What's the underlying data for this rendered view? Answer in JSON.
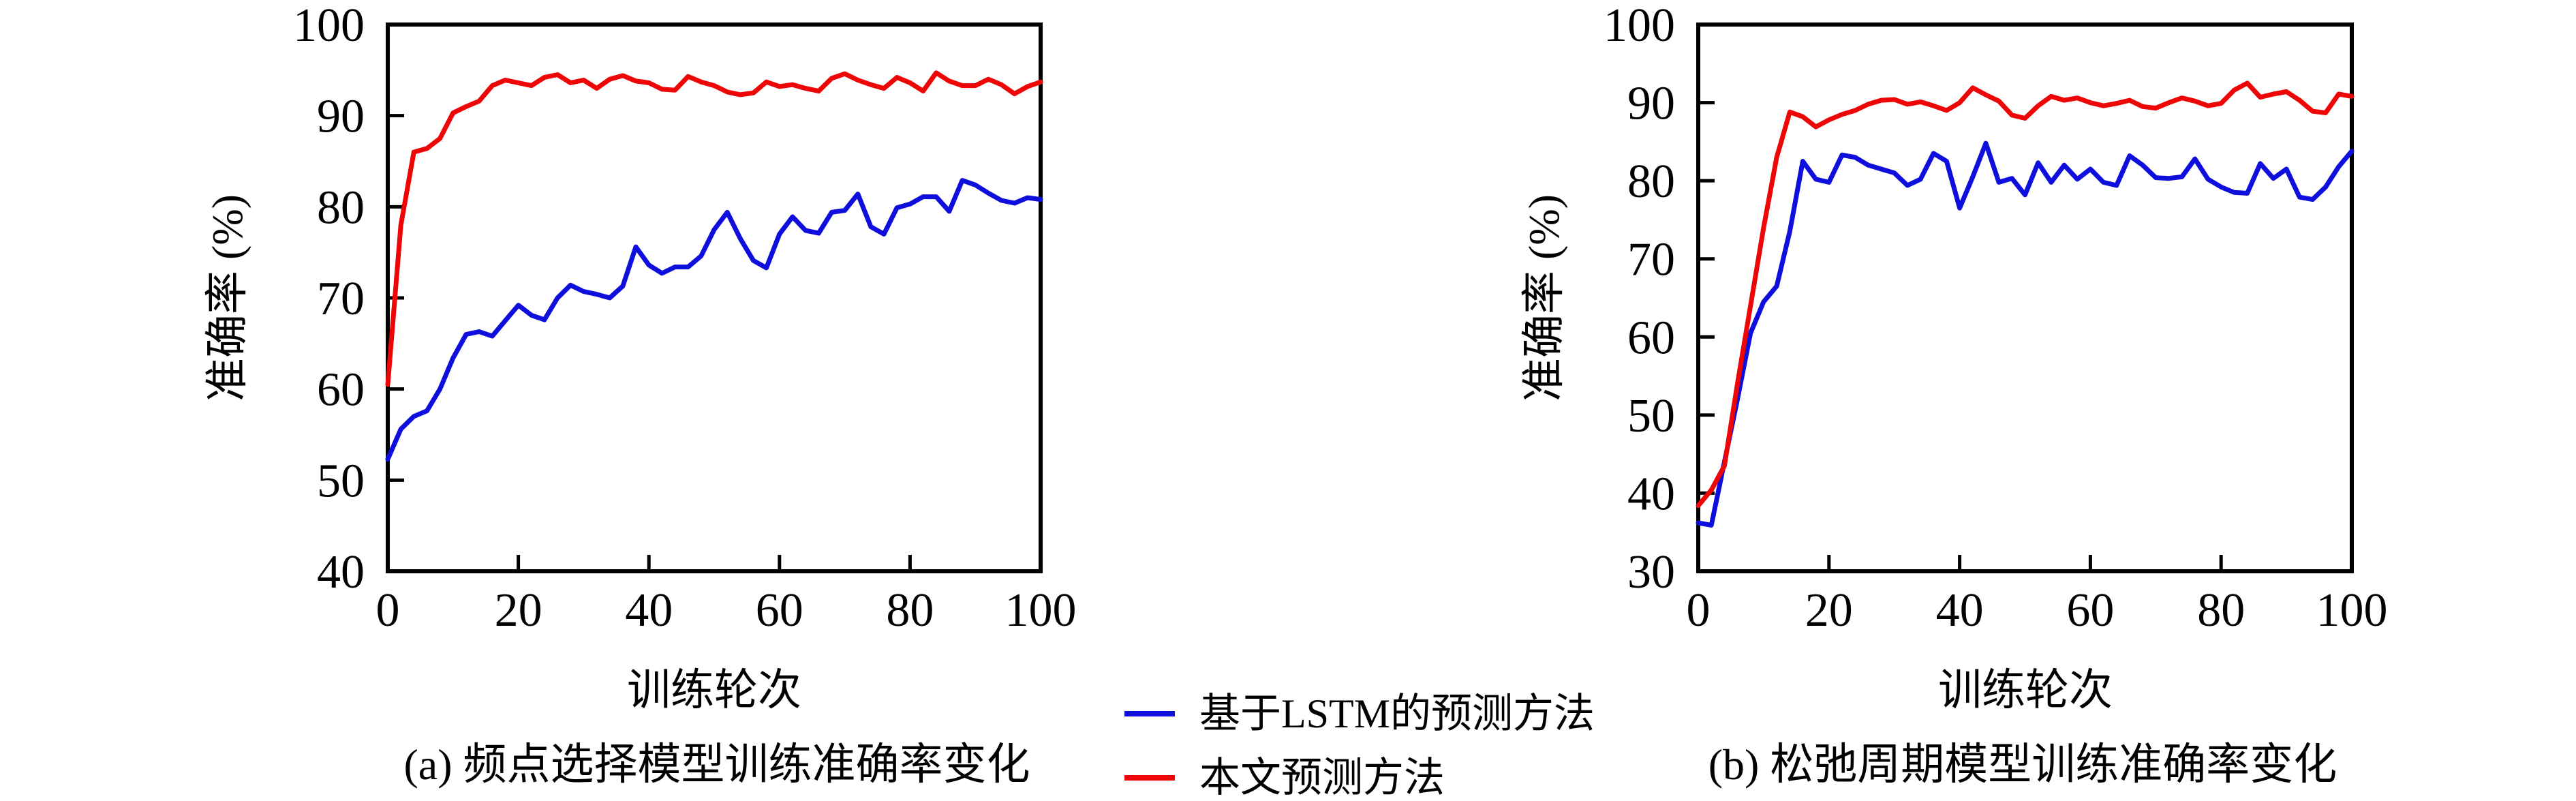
{
  "page": {
    "background": "#ffffff",
    "axis_color": "#000000"
  },
  "legend": {
    "items": [
      {
        "key": "lstm",
        "label": "基于LSTM的预测方法",
        "color": "#0f0fdd"
      },
      {
        "key": "proposed",
        "label": "本文预测方法",
        "color": "#ee0505"
      }
    ]
  },
  "chart_data": [
    {
      "id": "a",
      "type": "line",
      "title": "(a) 频点选择模型训练准确率变化",
      "xlabel": "训练轮次",
      "ylabel": "准确率 (%)",
      "xlim": [
        0,
        100
      ],
      "ylim": [
        40,
        100
      ],
      "xticks": [
        0,
        20,
        40,
        60,
        80,
        100
      ],
      "yticks": [
        40,
        50,
        60,
        70,
        80,
        90,
        100
      ],
      "grid": false,
      "legend_position": "below-right-shared",
      "x": [
        0,
        2,
        4,
        6,
        8,
        10,
        12,
        14,
        16,
        18,
        20,
        22,
        24,
        26,
        28,
        30,
        32,
        34,
        36,
        38,
        40,
        42,
        44,
        46,
        48,
        50,
        52,
        54,
        56,
        58,
        60,
        62,
        64,
        66,
        68,
        70,
        72,
        74,
        76,
        78,
        80,
        82,
        84,
        86,
        88,
        90,
        92,
        94,
        96,
        98,
        100
      ],
      "series": [
        {
          "key": "lstm",
          "name": "基于LSTM的预测方法",
          "color": "#0f0fdd",
          "values": [
            52.3,
            55.6,
            57.0,
            57.6,
            60.0,
            63.4,
            66.0,
            66.3,
            65.8,
            67.5,
            69.2,
            68.1,
            67.6,
            70.0,
            71.4,
            70.7,
            70.4,
            70.0,
            71.3,
            75.6,
            73.6,
            72.7,
            73.4,
            73.4,
            74.6,
            77.5,
            79.4,
            76.5,
            74.1,
            73.3,
            77.0,
            78.9,
            77.4,
            77.1,
            79.4,
            79.6,
            81.4,
            77.8,
            77.0,
            79.9,
            80.3,
            81.1,
            81.1,
            79.5,
            82.9,
            82.4,
            81.5,
            80.7,
            80.4,
            81.0,
            80.8
          ]
        },
        {
          "key": "proposed",
          "name": "本文预测方法",
          "color": "#ee0505",
          "values": [
            60.5,
            78.0,
            86.0,
            86.4,
            87.5,
            90.3,
            91.0,
            91.6,
            93.3,
            93.9,
            93.6,
            93.3,
            94.2,
            94.5,
            93.6,
            93.9,
            93.0,
            94.0,
            94.4,
            93.8,
            93.6,
            92.9,
            92.8,
            94.3,
            93.7,
            93.3,
            92.6,
            92.3,
            92.5,
            93.7,
            93.2,
            93.4,
            93.0,
            92.7,
            94.1,
            94.6,
            93.9,
            93.4,
            93.0,
            94.2,
            93.6,
            92.7,
            94.7,
            93.8,
            93.3,
            93.3,
            94.0,
            93.4,
            92.4,
            93.2,
            93.7
          ]
        }
      ]
    },
    {
      "id": "b",
      "type": "line",
      "title": "(b) 松弛周期模型训练准确率变化",
      "xlabel": "训练轮次",
      "ylabel": "准确率 (%)",
      "xlim": [
        0,
        100
      ],
      "ylim": [
        30,
        100
      ],
      "xticks": [
        0,
        20,
        40,
        60,
        80,
        100
      ],
      "yticks": [
        30,
        40,
        50,
        60,
        70,
        80,
        90,
        100
      ],
      "grid": false,
      "legend_position": "below-left-shared",
      "x": [
        0,
        2,
        4,
        6,
        8,
        10,
        12,
        14,
        16,
        18,
        20,
        22,
        24,
        26,
        28,
        30,
        32,
        34,
        36,
        38,
        40,
        42,
        44,
        46,
        48,
        50,
        52,
        54,
        56,
        58,
        60,
        62,
        64,
        66,
        68,
        70,
        72,
        74,
        76,
        78,
        80,
        82,
        84,
        86,
        88,
        90,
        92,
        94,
        96,
        98,
        100
      ],
      "series": [
        {
          "key": "lstm",
          "name": "基于LSTM的预测方法",
          "color": "#0f0fdd",
          "values": [
            36.2,
            35.9,
            44.0,
            52.0,
            60.5,
            64.5,
            66.5,
            73.5,
            82.5,
            80.2,
            79.8,
            83.3,
            83.0,
            82.0,
            81.5,
            81.0,
            79.4,
            80.2,
            83.5,
            82.5,
            76.5,
            80.5,
            84.8,
            79.8,
            80.3,
            78.2,
            82.3,
            79.8,
            82.0,
            80.2,
            81.5,
            79.8,
            79.4,
            83.2,
            82.0,
            80.4,
            80.3,
            80.5,
            82.8,
            80.2,
            79.2,
            78.5,
            78.4,
            82.2,
            80.3,
            81.5,
            77.9,
            77.6,
            79.2,
            81.8,
            83.8
          ]
        },
        {
          "key": "proposed",
          "name": "本文预测方法",
          "color": "#ee0505",
          "values": [
            38.4,
            40.4,
            43.5,
            54.0,
            64.0,
            74.0,
            83.0,
            88.8,
            88.2,
            86.9,
            87.8,
            88.5,
            89.0,
            89.8,
            90.3,
            90.4,
            89.8,
            90.1,
            89.6,
            89.0,
            90.0,
            91.9,
            91.0,
            90.2,
            88.4,
            88.0,
            89.6,
            90.8,
            90.3,
            90.6,
            90.0,
            89.6,
            89.9,
            90.3,
            89.5,
            89.3,
            90.0,
            90.6,
            90.2,
            89.6,
            89.9,
            91.6,
            92.5,
            90.7,
            91.1,
            91.4,
            90.3,
            88.9,
            88.7,
            91.1,
            90.8
          ]
        }
      ]
    }
  ]
}
